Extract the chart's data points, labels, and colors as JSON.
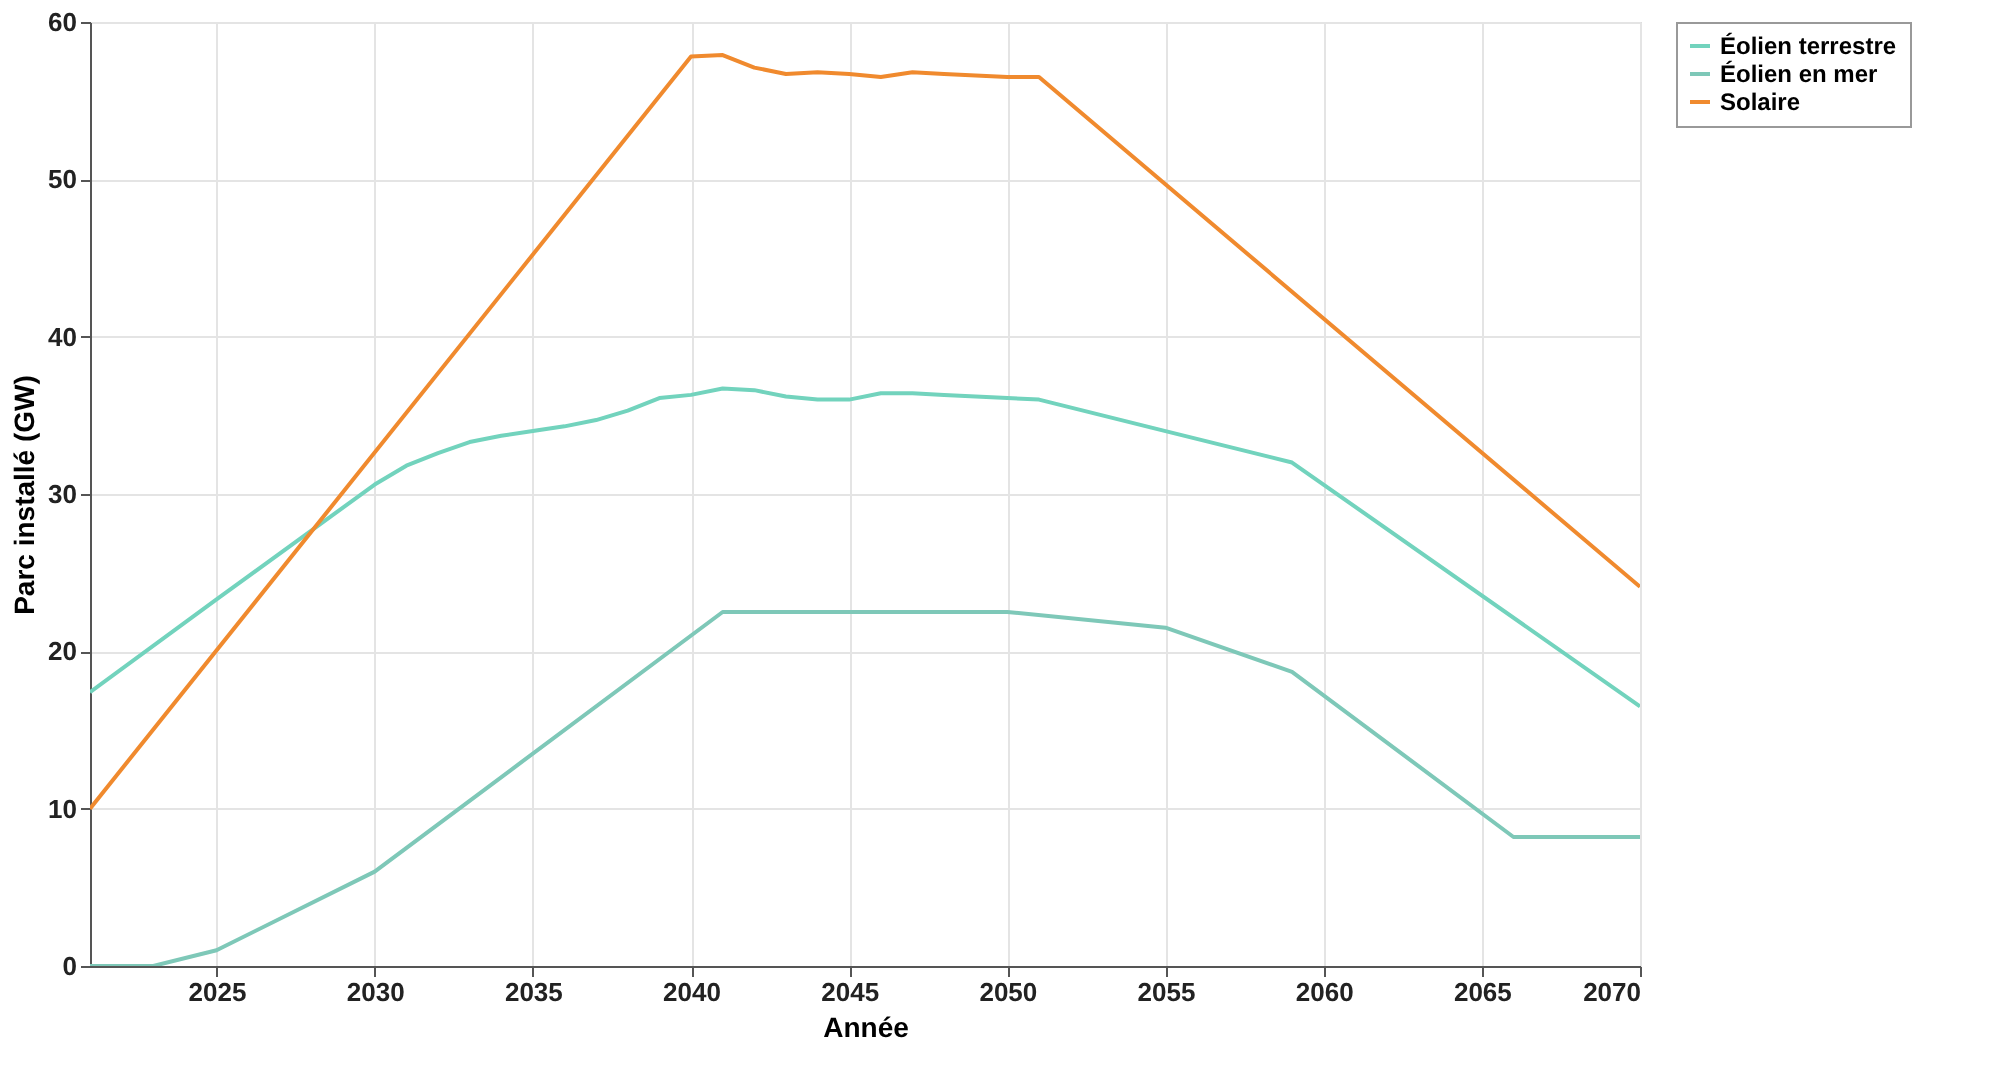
{
  "chart_data": {
    "type": "line",
    "xlabel": "Année",
    "ylabel": "Parc installé (GW)",
    "xlim": [
      2021,
      2070
    ],
    "ylim": [
      0,
      60
    ],
    "xticks": [
      2025,
      2030,
      2035,
      2040,
      2045,
      2050,
      2055,
      2060,
      2065,
      2070
    ],
    "yticks": [
      0,
      10,
      20,
      30,
      40,
      50,
      60
    ],
    "grid": true,
    "legend": "right",
    "marker": "none",
    "line_style": "solid",
    "series": [
      {
        "name": "Éolien terrestre",
        "color": "#72d3bd",
        "x": [
          2021,
          2025,
          2030,
          2031,
          2032,
          2033,
          2034,
          2035,
          2036,
          2037,
          2038,
          2039,
          2040,
          2041,
          2042,
          2043,
          2044,
          2045,
          2046,
          2047,
          2048,
          2049,
          2050,
          2051,
          2055,
          2059,
          2070
        ],
        "values": [
          17.4,
          23.3,
          30.6,
          31.8,
          32.6,
          33.3,
          33.7,
          34.0,
          34.3,
          34.7,
          35.3,
          36.1,
          36.3,
          36.7,
          36.6,
          36.2,
          36.0,
          36.0,
          36.4,
          36.4,
          36.3,
          36.2,
          36.1,
          36.0,
          34.0,
          32.0,
          16.5
        ]
      },
      {
        "name": "Éolien en mer",
        "color": "#7ec8b8",
        "x": [
          2021,
          2023,
          2025,
          2030,
          2041,
          2050,
          2055,
          2059,
          2066,
          2070
        ],
        "values": [
          0,
          0,
          1.0,
          6.0,
          22.5,
          22.5,
          21.5,
          18.7,
          8.2,
          8.2
        ]
      },
      {
        "name": "Solaire",
        "color": "#f08a2e",
        "x": [
          2021,
          2040,
          2041,
          2042,
          2043,
          2044,
          2045,
          2046,
          2047,
          2048,
          2049,
          2050,
          2051,
          2070
        ],
        "values": [
          10.0,
          57.8,
          57.9,
          57.1,
          56.7,
          56.8,
          56.7,
          56.5,
          56.8,
          56.7,
          56.6,
          56.5,
          56.5,
          24.1
        ]
      }
    ]
  }
}
